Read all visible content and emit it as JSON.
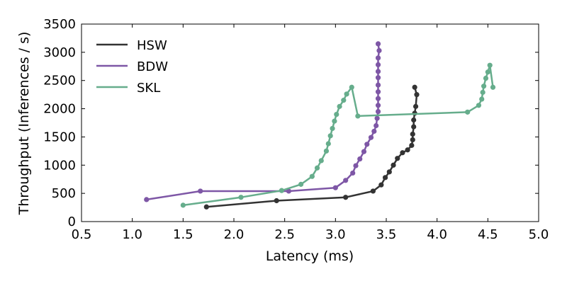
{
  "chart_data": {
    "type": "line",
    "title": "",
    "xlabel": "Latency (ms)",
    "ylabel": "Throughput (Inferences / s)",
    "xlim": [
      0.5,
      5.0
    ],
    "ylim": [
      0,
      3500
    ],
    "xticks": [
      "0.5",
      "1.0",
      "1.5",
      "2.0",
      "2.5",
      "3.0",
      "3.5",
      "4.0",
      "4.5",
      "5.0"
    ],
    "yticks": [
      "0",
      "500",
      "1000",
      "1500",
      "2000",
      "2500",
      "3000",
      "3500"
    ],
    "grid": false,
    "legend_position": "top-left",
    "series": [
      {
        "name": "HSW",
        "color": "#333333",
        "x": [
          1.73,
          2.42,
          3.1,
          3.37,
          3.45,
          3.49,
          3.53,
          3.57,
          3.61,
          3.66,
          3.71,
          3.75,
          3.76,
          3.76,
          3.77,
          3.77,
          3.78,
          3.79,
          3.8,
          3.78
        ],
        "y": [
          260,
          370,
          430,
          540,
          650,
          780,
          880,
          1000,
          1120,
          1220,
          1270,
          1350,
          1450,
          1550,
          1680,
          1800,
          1920,
          2040,
          2250,
          2380
        ]
      },
      {
        "name": "BDW",
        "color": "#7e57a6",
        "x": [
          1.14,
          1.67,
          2.54,
          3.0,
          3.1,
          3.17,
          3.2,
          3.24,
          3.28,
          3.31,
          3.35,
          3.38,
          3.4,
          3.41,
          3.42,
          3.42,
          3.42,
          3.42,
          3.42,
          3.42,
          3.42,
          3.42,
          3.42,
          3.43,
          3.42
        ],
        "y": [
          390,
          540,
          540,
          600,
          730,
          860,
          990,
          1110,
          1240,
          1370,
          1490,
          1600,
          1700,
          1830,
          1950,
          2060,
          2180,
          2300,
          2420,
          2550,
          2660,
          2780,
          2900,
          3030,
          3150
        ]
      },
      {
        "name": "SKL",
        "color": "#66ad8c",
        "x": [
          1.5,
          2.07,
          2.47,
          2.66,
          2.77,
          2.82,
          2.86,
          2.91,
          2.93,
          2.95,
          2.97,
          2.99,
          3.01,
          3.04,
          3.08,
          3.11,
          3.16,
          3.22,
          4.3,
          4.41,
          4.44,
          4.45,
          4.46,
          4.48,
          4.5,
          4.52,
          4.55
        ],
        "y": [
          290,
          430,
          550,
          660,
          800,
          950,
          1080,
          1250,
          1380,
          1520,
          1650,
          1780,
          1900,
          2040,
          2150,
          2260,
          2380,
          1870,
          1940,
          2060,
          2170,
          2290,
          2400,
          2540,
          2650,
          2770,
          2380
        ]
      }
    ]
  }
}
